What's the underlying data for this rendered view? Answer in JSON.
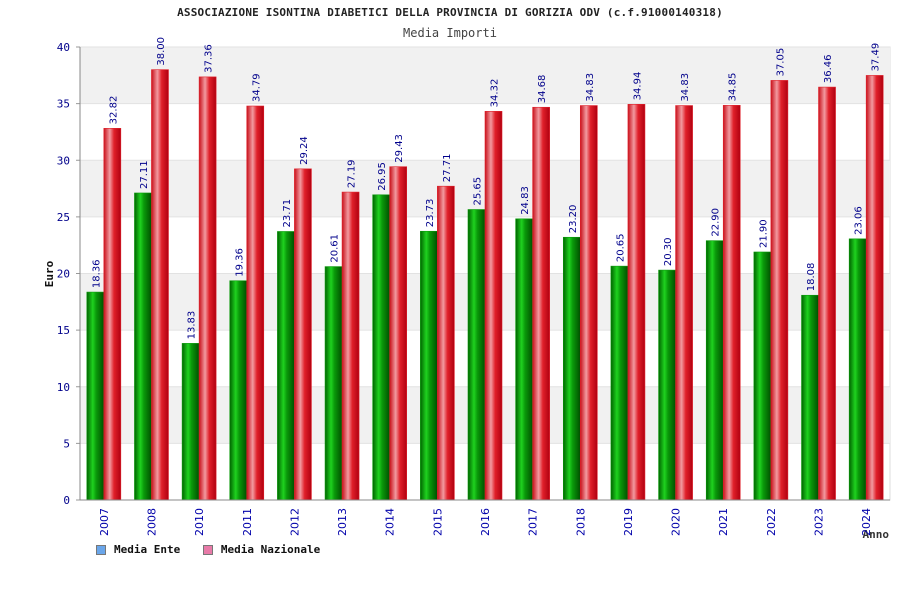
{
  "chart_data": {
    "type": "bar",
    "title": "ASSOCIAZIONE ISONTINA DIABETICI DELLA PROVINCIA DI GORIZIA ODV (c.f.91000140318)",
    "subtitle": "Media Importi",
    "xlabel": "Anno",
    "ylabel": "Euro",
    "ylim": [
      0,
      40
    ],
    "yticks": [
      0,
      5,
      10,
      15,
      20,
      25,
      30,
      35,
      40
    ],
    "grid": true,
    "legend_position": "bottom-left",
    "categories": [
      "2007",
      "2008",
      "2010",
      "2011",
      "2012",
      "2013",
      "2014",
      "2015",
      "2016",
      "2017",
      "2018",
      "2019",
      "2020",
      "2021",
      "2022",
      "2023",
      "2024"
    ],
    "series": [
      {
        "name": "Media Ente",
        "color": "#0a9a0a",
        "legend_color": "#6aa6ea",
        "values": [
          18.36,
          27.11,
          13.83,
          19.36,
          23.71,
          20.61,
          26.95,
          23.73,
          25.65,
          24.83,
          23.2,
          20.65,
          20.3,
          22.9,
          21.9,
          18.08,
          23.06
        ],
        "labels": [
          "18.36",
          "27.11",
          "13.83",
          "19.36",
          "23.71",
          "20.61",
          "26.95",
          "23.73",
          "25.65",
          "24.83",
          "23.20",
          "20.65",
          "20.30",
          "22.90",
          "21.90",
          "18.08",
          "23.06"
        ]
      },
      {
        "name": "Media Nazionale",
        "color": "#e0202a",
        "legend_color": "#e87aa8",
        "values": [
          32.82,
          38.0,
          37.36,
          34.79,
          29.24,
          27.19,
          29.43,
          27.71,
          34.32,
          34.68,
          34.83,
          34.94,
          34.83,
          34.85,
          37.05,
          36.46,
          37.49
        ],
        "labels": [
          "32.82",
          "38.00",
          "37.36",
          "34.79",
          "29.24",
          "27.19",
          "29.43",
          "27.71",
          "34.32",
          "34.68",
          "34.83",
          "34.94",
          "34.83",
          "34.85",
          "37.05",
          "36.46",
          "37.49"
        ]
      }
    ]
  }
}
